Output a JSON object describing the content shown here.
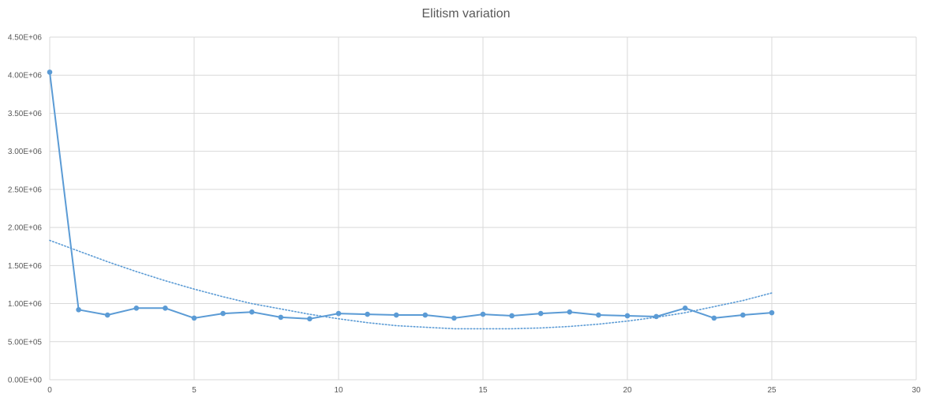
{
  "chart_data": {
    "type": "scatter",
    "title": "Elitism variation",
    "xlabel": "",
    "ylabel": "",
    "xlim": [
      0,
      30
    ],
    "ylim": [
      0,
      4500000
    ],
    "x_ticks": [
      0,
      5,
      10,
      15,
      20,
      25,
      30
    ],
    "x_tick_labels": [
      "0",
      "5",
      "10",
      "15",
      "20",
      "25",
      "30"
    ],
    "y_ticks": [
      0,
      500000,
      1000000,
      1500000,
      2000000,
      2500000,
      3000000,
      3500000,
      4000000,
      4500000
    ],
    "y_tick_labels": [
      "0.00E+00",
      "5.00E+05",
      "1.00E+06",
      "1.50E+06",
      "2.00E+06",
      "2.50E+06",
      "3.00E+06",
      "3.50E+06",
      "4.00E+06",
      "4.50E+06"
    ],
    "grid": true,
    "legend": "none",
    "series": [
      {
        "style": "line-with-markers",
        "color": "#5b9bd5",
        "x": [
          0,
          1,
          2,
          3,
          4,
          5,
          6,
          7,
          8,
          9,
          10,
          11,
          12,
          13,
          14,
          15,
          16,
          17,
          18,
          19,
          20,
          21,
          22,
          23,
          24,
          25
        ],
        "y": [
          4040000,
          920000,
          850000,
          940000,
          940000,
          810000,
          870000,
          890000,
          820000,
          800000,
          870000,
          860000,
          850000,
          850000,
          810000,
          860000,
          840000,
          870000,
          890000,
          850000,
          840000,
          830000,
          940000,
          810000,
          850000,
          880000
        ]
      },
      {
        "style": "dotted-trendline",
        "color": "#5b9bd5",
        "x": [
          0,
          1,
          2,
          3,
          4,
          5,
          6,
          7,
          8,
          9,
          10,
          11,
          12,
          13,
          14,
          15,
          16,
          17,
          18,
          19,
          20,
          21,
          22,
          23,
          24,
          25
        ],
        "y": [
          1830000,
          1690000,
          1550000,
          1420000,
          1300000,
          1190000,
          1090000,
          1000000,
          930000,
          860000,
          800000,
          750000,
          710000,
          690000,
          670000,
          670000,
          670000,
          680000,
          700000,
          730000,
          770000,
          820000,
          880000,
          960000,
          1040000,
          1140000
        ]
      }
    ]
  }
}
